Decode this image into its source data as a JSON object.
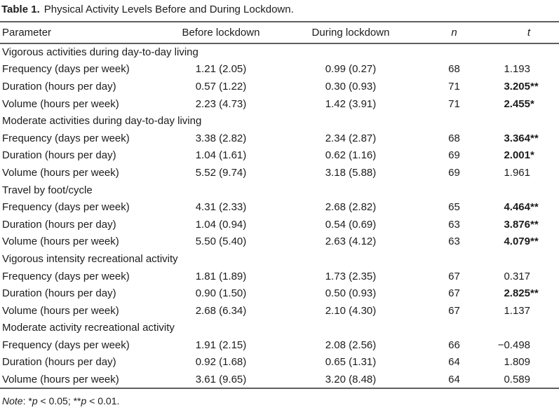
{
  "colors": {
    "text": "#1c1c1c",
    "rule": "#5f5f5f",
    "background": "#ffffff"
  },
  "title": {
    "label": "Table 1.",
    "text": "Physical Activity Levels Before and During Lockdown."
  },
  "table": {
    "columns": [
      "Parameter",
      "Before lockdown",
      "During lockdown",
      "n",
      "t"
    ],
    "sections": [
      {
        "header": "Vigorous activities during day-to-day living",
        "rows": [
          {
            "parameter": "Frequency (days per week)",
            "before": "1.21 (2.05)",
            "during": "0.99 (0.27)",
            "n": "68",
            "t": "1.193",
            "stars": "",
            "bold": false
          },
          {
            "parameter": "Duration (hours per day)",
            "before": "0.57 (1.22)",
            "during": "0.30 (0.93)",
            "n": "71",
            "t": "3.205",
            "stars": "**",
            "bold": true
          },
          {
            "parameter": "Volume (hours per week)",
            "before": "2.23 (4.73)",
            "during": "1.42 (3.91)",
            "n": "71",
            "t": "2.455",
            "stars": "*",
            "bold": true
          }
        ]
      },
      {
        "header": "Moderate activities during day-to-day living",
        "rows": [
          {
            "parameter": "Frequency (days per week)",
            "before": "3.38 (2.82)",
            "during": "2.34 (2.87)",
            "n": "68",
            "t": "3.364",
            "stars": "**",
            "bold": true
          },
          {
            "parameter": "Duration (hours per day)",
            "before": "1.04 (1.61)",
            "during": "0.62 (1.16)",
            "n": "69",
            "t": "2.001",
            "stars": "*",
            "bold": true
          },
          {
            "parameter": "Volume (hours per week)",
            "before": "5.52 (9.74)",
            "during": "3.18 (5.88)",
            "n": "69",
            "t": "1.961",
            "stars": "",
            "bold": false
          }
        ]
      },
      {
        "header": "Travel by foot/cycle",
        "rows": [
          {
            "parameter": "Frequency (days per week)",
            "before": "4.31 (2.33)",
            "during": "2.68 (2.82)",
            "n": "65",
            "t": "4.464",
            "stars": "**",
            "bold": true
          },
          {
            "parameter": "Duration (hours per day)",
            "before": "1.04 (0.94)",
            "during": "0.54 (0.69)",
            "n": "63",
            "t": "3.876",
            "stars": "**",
            "bold": true
          },
          {
            "parameter": "Volume (hours per week)",
            "before": "5.50 (5.40)",
            "during": "2.63 (4.12)",
            "n": "63",
            "t": "4.079",
            "stars": "**",
            "bold": true
          }
        ]
      },
      {
        "header": "Vigorous intensity recreational activity",
        "rows": [
          {
            "parameter": "Frequency (days per week)",
            "before": "1.81 (1.89)",
            "during": "1.73 (2.35)",
            "n": "67",
            "t": "0.317",
            "stars": "",
            "bold": false
          },
          {
            "parameter": "Duration (hours per day)",
            "before": "0.90 (1.50)",
            "during": "0.50 (0.93)",
            "n": "67",
            "t": "2.825",
            "stars": "**",
            "bold": true
          },
          {
            "parameter": "Volume (hours per week)",
            "before": "2.68 (6.34)",
            "during": "2.10 (4.30)",
            "n": "67",
            "t": "1.137",
            "stars": "",
            "bold": false
          }
        ]
      },
      {
        "header": "Moderate activity recreational activity",
        "rows": [
          {
            "parameter": "Frequency (days per week)",
            "before": "1.91 (2.15)",
            "during": "2.08 (2.56)",
            "n": "66",
            "t": "−0.498",
            "stars": "",
            "bold": false
          },
          {
            "parameter": "Duration (hours per day)",
            "before": "0.92 (1.68)",
            "during": "0.65 (1.31)",
            "n": "64",
            "t": "1.809",
            "stars": "",
            "bold": false
          },
          {
            "parameter": "Volume (hours per week)",
            "before": "3.61 (9.65)",
            "during": "3.20 (8.48)",
            "n": "64",
            "t": "0.589",
            "stars": "",
            "bold": false
          }
        ]
      }
    ]
  },
  "note": {
    "runs": [
      {
        "text": "Note",
        "italic": true
      },
      {
        "text": ": *",
        "italic": false
      },
      {
        "text": "p",
        "italic": true
      },
      {
        "text": " < 0.05; **",
        "italic": false
      },
      {
        "text": "p",
        "italic": true
      },
      {
        "text": " < 0.01.",
        "italic": false
      }
    ]
  }
}
